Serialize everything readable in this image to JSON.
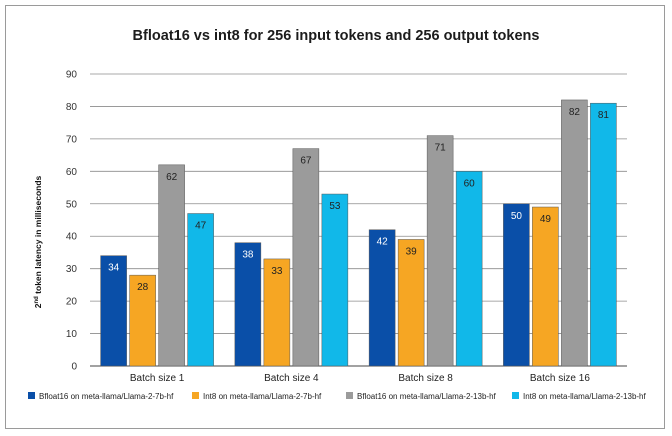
{
  "chart_data": {
    "type": "bar",
    "title": "Bfloat16 vs int8 for 256 input tokens and 256 output tokens",
    "ylabel_main": "2",
    "ylabel_sup": "nd",
    "ylabel_rest": " token latency in milliseconds",
    "xlabel": "",
    "ylim": [
      0,
      90
    ],
    "yticks": [
      0,
      10,
      20,
      30,
      40,
      50,
      60,
      70,
      80,
      90
    ],
    "grid": true,
    "legend_position": "bottom",
    "categories": [
      "Batch size 1",
      "Batch size 4",
      "Batch size 8",
      "Batch size 16"
    ],
    "series": [
      {
        "name": "Bfloat16 on meta-llama/Llama-2-7b-hf",
        "color": "#0a4fa8",
        "label_color": "#ffffff",
        "values": [
          34,
          38,
          42,
          50
        ]
      },
      {
        "name": "Int8 on meta-llama/Llama-2-7b-hf",
        "color": "#f6a623",
        "label_color": "#222222",
        "values": [
          28,
          33,
          39,
          49
        ]
      },
      {
        "name": "Bfloat16 on meta-llama/Llama-2-13b-hf",
        "color": "#9b9b9b",
        "label_color": "#222222",
        "values": [
          62,
          67,
          71,
          82
        ]
      },
      {
        "name": "Int8 on meta-llama/Llama-2-13b-hf",
        "color": "#11b8e9",
        "label_color": "#222222",
        "values": [
          47,
          53,
          60,
          81
        ]
      }
    ]
  }
}
